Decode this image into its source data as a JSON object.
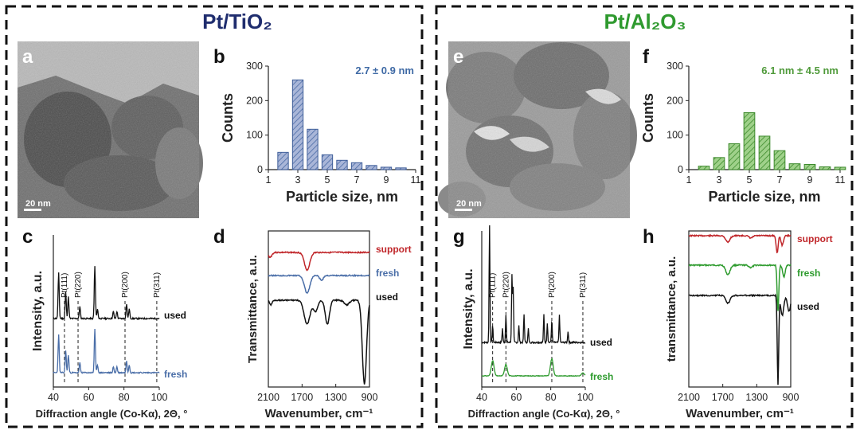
{
  "titles": {
    "left": "Pt/TiO₂",
    "right": "Pt/Al₂O₃"
  },
  "colors": {
    "navy": "#1f2d6e",
    "green": "#2f9a2f",
    "blue_bar": "#8e9fc8",
    "blue_edge": "#3f5e99",
    "green_bar": "#7fbf68",
    "green_edge": "#3d8a2c",
    "red": "#c0262a",
    "blue": "#4a6ea8",
    "black": "#111111",
    "gtrace": "#2e9b2e"
  },
  "panels": {
    "a": {
      "label": "a",
      "scale": "20 nm"
    },
    "e": {
      "label": "e",
      "scale": "20 nm"
    },
    "b": {
      "label": "b"
    },
    "f": {
      "label": "f"
    },
    "c": {
      "label": "c"
    },
    "d": {
      "label": "d"
    },
    "g": {
      "label": "g"
    },
    "h": {
      "label": "h"
    }
  },
  "chart_data": [
    {
      "id": "b",
      "type": "bar",
      "title": "",
      "xlabel": "Particle size, nm",
      "ylabel": "Counts",
      "annotation": "2.7 ± 0.9 nm",
      "x": [
        2,
        3,
        4,
        5,
        6,
        7,
        8,
        9,
        10
      ],
      "values": [
        50,
        260,
        117,
        43,
        27,
        20,
        12,
        7,
        5
      ],
      "xlim": [
        1,
        11
      ],
      "ylim": [
        0,
        300
      ],
      "xticks": [
        1,
        3,
        5,
        7,
        9,
        11
      ],
      "yticks": [
        0,
        100,
        200,
        300
      ]
    },
    {
      "id": "f",
      "type": "bar",
      "title": "",
      "xlabel": "Particle size, nm",
      "ylabel": "Counts",
      "annotation": "6.1 nm ± 4.5 nm",
      "x": [
        2,
        3,
        4,
        5,
        6,
        7,
        8,
        9,
        10,
        11
      ],
      "values": [
        10,
        35,
        75,
        165,
        97,
        55,
        17,
        15,
        8,
        7
      ],
      "xlim": [
        1,
        11
      ],
      "ylim": [
        0,
        300
      ],
      "xticks": [
        1,
        3,
        5,
        7,
        9,
        11
      ],
      "yticks": [
        0,
        100,
        200,
        300
      ]
    },
    {
      "id": "c",
      "type": "line",
      "title": "",
      "xlabel": "Diffraction angle (Co-Kα), 2Θ, °",
      "ylabel": "Intensity, a.u.",
      "xlim": [
        40,
        100
      ],
      "xticks": [
        40,
        60,
        80,
        100
      ],
      "reference_lines": [
        {
          "label": "Pt(111)",
          "x": 46.3
        },
        {
          "label": "Pt(220)",
          "x": 54.0
        },
        {
          "label": "Pt(200)",
          "x": 80.6
        },
        {
          "label": "Pt(311)",
          "x": 98.6
        }
      ],
      "series": [
        {
          "name": "used",
          "color": "#111111",
          "offset": 1.0,
          "peaks": [
            [
              43,
              0.95
            ],
            [
              47,
              0.55
            ],
            [
              48.5,
              0.45
            ],
            [
              55,
              0.25
            ],
            [
              63.5,
              1.1
            ],
            [
              65,
              0.2
            ],
            [
              74,
              0.15
            ],
            [
              76,
              0.15
            ],
            [
              81.5,
              0.3
            ],
            [
              83,
              0.2
            ]
          ]
        },
        {
          "name": "fresh",
          "color": "#4a6ea8",
          "offset": 0.0,
          "peaks": [
            [
              43,
              0.95
            ],
            [
              47,
              0.55
            ],
            [
              48.5,
              0.45
            ],
            [
              55,
              0.25
            ],
            [
              63.5,
              1.1
            ],
            [
              65,
              0.2
            ],
            [
              74,
              0.15
            ],
            [
              76,
              0.15
            ],
            [
              81.5,
              0.3
            ],
            [
              83,
              0.2
            ]
          ]
        }
      ]
    },
    {
      "id": "d",
      "type": "line",
      "title": "",
      "xlabel": "Wavenumber, cm⁻¹",
      "ylabel": "Transmittance, a.u.",
      "xlim": [
        2100,
        900
      ],
      "xticks": [
        2100,
        1700,
        1300,
        900
      ],
      "series": [
        {
          "name": "support",
          "color": "#c0262a"
        },
        {
          "name": "fresh",
          "color": "#4a6ea8"
        },
        {
          "name": "used",
          "color": "#111111"
        }
      ]
    },
    {
      "id": "g",
      "type": "line",
      "title": "",
      "xlabel": "Diffraction angle (Co-Kα), 2Θ, °",
      "ylabel": "Intensity, a.u.",
      "xlim": [
        40,
        100
      ],
      "xticks": [
        40,
        60,
        80,
        100
      ],
      "reference_lines": [
        {
          "label": "Pt(111)",
          "x": 46.3
        },
        {
          "label": "Pt(220)",
          "x": 54.0
        },
        {
          "label": "Pt(200)",
          "x": 80.6
        },
        {
          "label": "Pt(311)",
          "x": 98.6
        }
      ],
      "series": [
        {
          "name": "used",
          "color": "#111111"
        },
        {
          "name": "fresh",
          "color": "#2e9b2e"
        }
      ]
    },
    {
      "id": "h",
      "type": "line",
      "title": "",
      "xlabel": "Wavenumber, cm⁻¹",
      "ylabel": "transmittance, a.u.",
      "xlim": [
        2100,
        900
      ],
      "xticks": [
        2100,
        1700,
        1300,
        900
      ],
      "series": [
        {
          "name": "support",
          "color": "#c0262a"
        },
        {
          "name": "fresh",
          "color": "#2e9b2e"
        },
        {
          "name": "used",
          "color": "#111111"
        }
      ]
    }
  ]
}
